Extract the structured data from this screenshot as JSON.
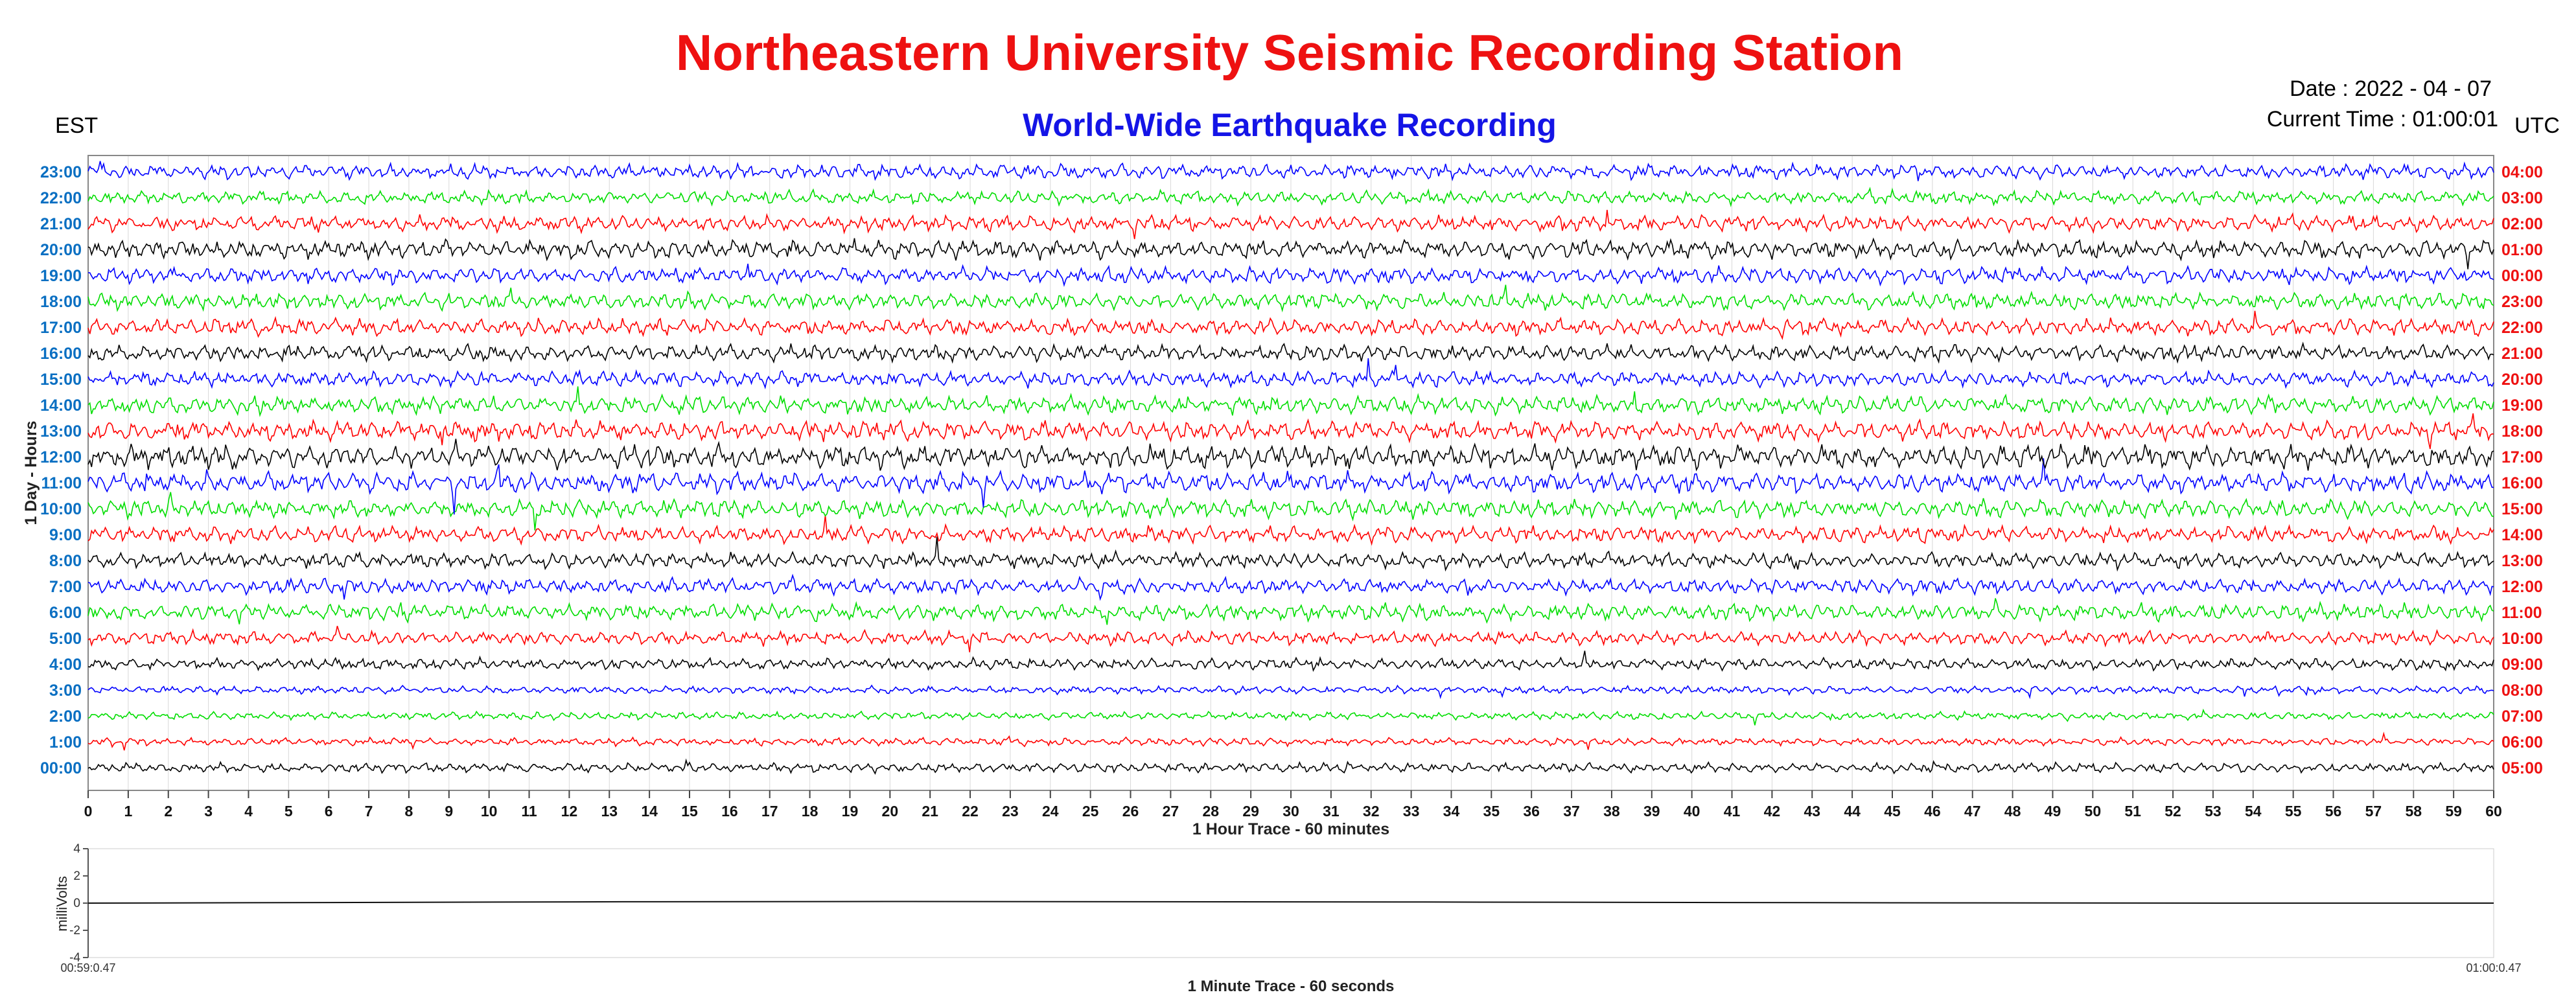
{
  "header": {
    "title": "Northeastern University Seismic Recording Station",
    "subtitle": "World-Wide Earthquake Recording",
    "date_text": "Date : 2022 - 04 - 07",
    "time_text": "Current Time : 01:00:01",
    "left_zone": "EST",
    "right_zone": "UTC"
  },
  "colors": {
    "title": "#ee1111",
    "subtitle": "#1414e6",
    "left_labels": "#0a6fc2",
    "right_labels": "#ee1111",
    "trace_cycle": [
      "#000000",
      "#ff0000",
      "#00dd00",
      "#0000ff"
    ],
    "grid": "#d8d8d8"
  },
  "chart_data": [
    {
      "type": "line",
      "description_key": "helicorder",
      "xlabel": "1 Hour Trace - 60 minutes",
      "ylabel": "1 Day - Hours",
      "x_ticks": [
        0,
        1,
        2,
        3,
        4,
        5,
        6,
        7,
        8,
        9,
        10,
        11,
        12,
        13,
        14,
        15,
        16,
        17,
        18,
        19,
        20,
        21,
        22,
        23,
        24,
        25,
        26,
        27,
        28,
        29,
        30,
        31,
        32,
        33,
        34,
        35,
        36,
        37,
        38,
        39,
        40,
        41,
        42,
        43,
        44,
        45,
        46,
        47,
        48,
        49,
        50,
        51,
        52,
        53,
        54,
        55,
        56,
        57,
        58,
        59,
        60
      ],
      "xlim": [
        0,
        60
      ],
      "grid": true,
      "rows_est": [
        "00:00",
        "1:00",
        "2:00",
        "3:00",
        "4:00",
        "5:00",
        "6:00",
        "7:00",
        "8:00",
        "9:00",
        "10:00",
        "11:00",
        "12:00",
        "13:00",
        "14:00",
        "15:00",
        "16:00",
        "17:00",
        "18:00",
        "19:00",
        "20:00",
        "21:00",
        "22:00",
        "23:00"
      ],
      "rows_utc": [
        "05:00",
        "06:00",
        "07:00",
        "08:00",
        "09:00",
        "10:00",
        "11:00",
        "12:00",
        "13:00",
        "14:00",
        "15:00",
        "16:00",
        "17:00",
        "18:00",
        "19:00",
        "20:00",
        "21:00",
        "22:00",
        "23:00",
        "00:00",
        "01:00",
        "02:00",
        "03:00",
        "04:00"
      ],
      "row_activity": [
        0.25,
        0.15,
        0.15,
        0.15,
        0.35,
        0.45,
        0.6,
        0.55,
        0.55,
        0.6,
        0.7,
        0.8,
        0.95,
        0.75,
        0.65,
        0.55,
        0.6,
        0.6,
        0.6,
        0.6,
        0.7,
        0.55,
        0.45,
        0.5
      ]
    },
    {
      "type": "line",
      "description_key": "minute_trace",
      "xlabel": "1 Minute Trace  - 60 seconds",
      "ylabel": "milliVolts",
      "y_ticks": [
        4,
        2,
        0,
        -2,
        -4
      ],
      "ylim": [
        -4,
        4
      ],
      "x_start_label": "00:59:0.47",
      "x_end_label": "01:00:0.47",
      "values": [
        0.0,
        0.05,
        0.1,
        0.12,
        0.1,
        0.08,
        0.05,
        0.02,
        0.0,
        0.0
      ]
    }
  ]
}
